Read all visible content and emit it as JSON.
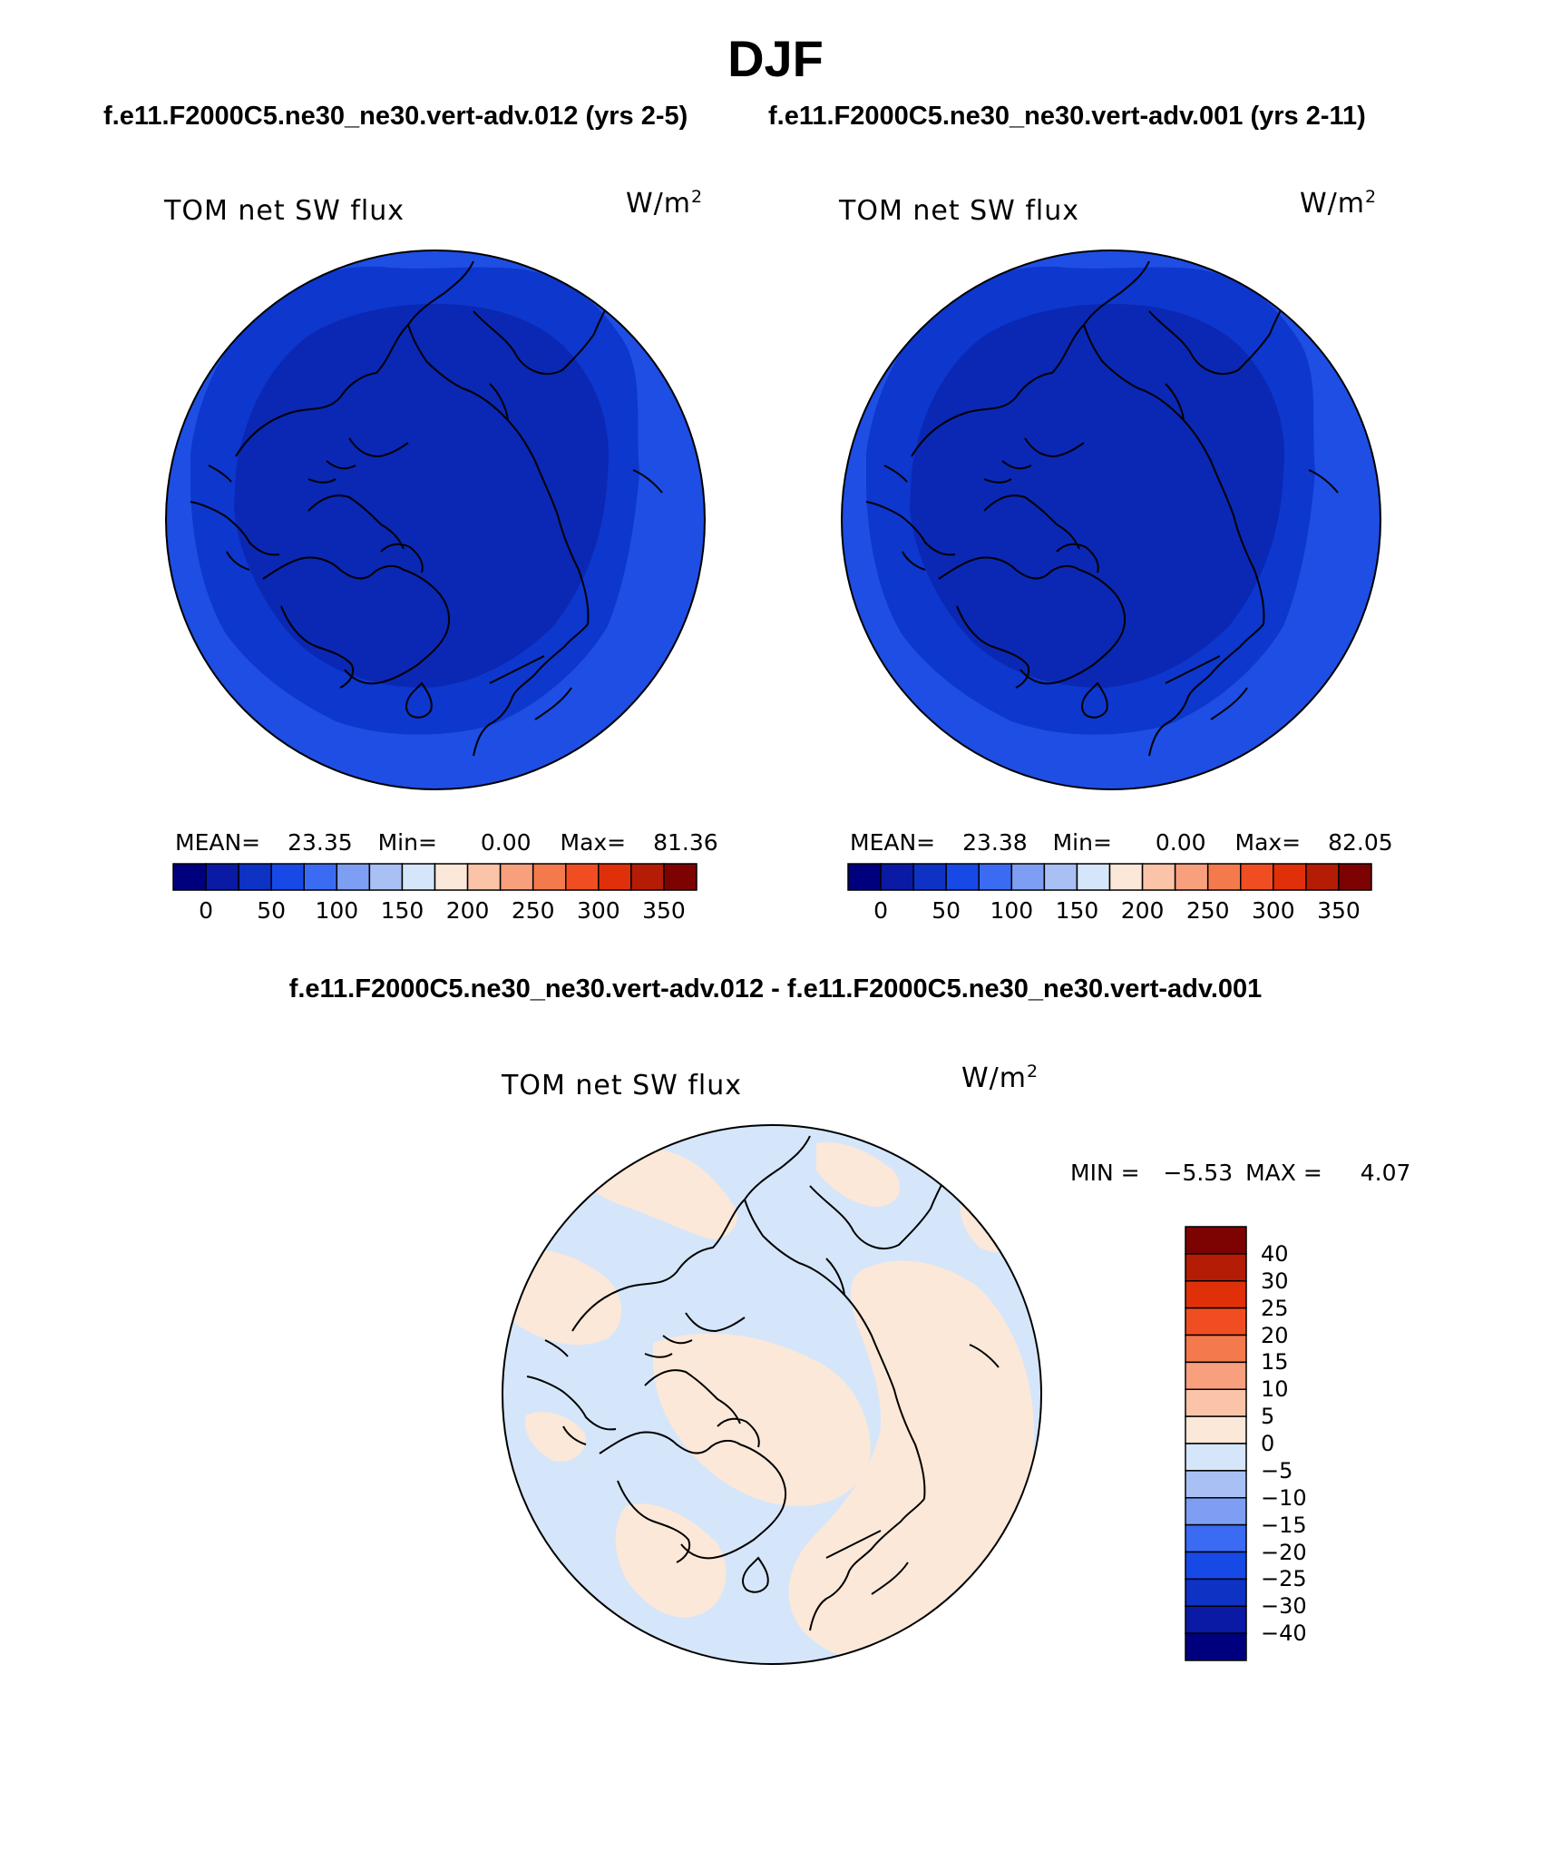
{
  "title": "DJF",
  "panel_header_left": "f.e11.F2000C5.ne30_ne30.vert-adv.012 (yrs 2-5)",
  "panel_header_right": "f.e11.F2000C5.ne30_ne30.vert-adv.001 (yrs 2-11)",
  "diff_header": "f.e11.F2000C5.ne30_ne30.vert-adv.012 - f.e11.F2000C5.ne30_ne30.vert-adv.001",
  "panels": [
    {
      "label": "TOM net SW flux",
      "unit": "W/m",
      "unit_exp": "2",
      "mean_label": "MEAN=",
      "mean": "23.35",
      "min_label": "Min=",
      "min": "0.00",
      "max_label": "Max=",
      "max": "81.36"
    },
    {
      "label": "TOM net SW flux",
      "unit": "W/m",
      "unit_exp": "2",
      "mean_label": "MEAN=",
      "mean": "23.38",
      "min_label": "Min=",
      "min": "0.00",
      "max_label": "Max=",
      "max": "82.05"
    }
  ],
  "diff_panel": {
    "label": "TOM net SW flux",
    "unit": "W/m",
    "unit_exp": "2",
    "min_label": "MIN =",
    "min": "−5.53",
    "max_label": "MAX =",
    "max": "4.07"
  },
  "colors": {
    "abs_fill_bands": [
      "#0a28b4",
      "#0d37cd",
      "#1e4ee4"
    ],
    "abs_colorbar": [
      "#00007e",
      "#0a1aa5",
      "#0d32c4",
      "#1749e6",
      "#3b6bf2",
      "#7d9ef2",
      "#a9c0f5",
      "#d5e6fa",
      "#fce8d8",
      "#fbc4a8",
      "#f8a07e",
      "#f47a4e",
      "#f04e22",
      "#e0300a",
      "#b51c05",
      "#7d0303"
    ],
    "diff_colorbar_top_to_bottom": [
      "#7d0303",
      "#b51c05",
      "#e0300a",
      "#f04e22",
      "#f47a4e",
      "#f8a07e",
      "#fbc4a8",
      "#fce8d8",
      "#d5e6fa",
      "#a9c0f5",
      "#7d9ef2",
      "#3b6bf2",
      "#1749e6",
      "#0d32c4",
      "#0a1aa5",
      "#00007e"
    ],
    "diff_positive": "#fce8d8",
    "diff_negative": "#d5e6fa"
  },
  "chart_data": [
    {
      "type": "heatmap",
      "projection": "north polar stereographic",
      "title": "TOM net SW flux",
      "unit": "W/m2",
      "stats": {
        "MEAN": 23.35,
        "Min": 0.0,
        "Max": 81.36
      },
      "colorbar_ticks": [
        "0",
        "50",
        "100",
        "150",
        "200",
        "250",
        "300",
        "350"
      ],
      "colorbar_levels": [
        0,
        25,
        50,
        75,
        100,
        125,
        150,
        175,
        200,
        225,
        250,
        275,
        300,
        325,
        350
      ]
    },
    {
      "type": "heatmap",
      "projection": "north polar stereographic",
      "title": "TOM net SW flux",
      "unit": "W/m2",
      "stats": {
        "MEAN": 23.38,
        "Min": 0.0,
        "Max": 82.05
      },
      "colorbar_ticks": [
        "0",
        "50",
        "100",
        "150",
        "200",
        "250",
        "300",
        "350"
      ],
      "colorbar_levels": [
        0,
        25,
        50,
        75,
        100,
        125,
        150,
        175,
        200,
        225,
        250,
        275,
        300,
        325,
        350
      ]
    },
    {
      "type": "heatmap",
      "projection": "north polar stereographic",
      "title": "TOM net SW flux",
      "unit": "W/m2",
      "stats": {
        "MIN": -5.53,
        "MAX": 4.07
      },
      "colorbar_ticks": [
        "40",
        "30",
        "25",
        "20",
        "15",
        "10",
        "5",
        "0",
        "−5",
        "−10",
        "−15",
        "−20",
        "−25",
        "−30",
        "−40"
      ]
    }
  ]
}
